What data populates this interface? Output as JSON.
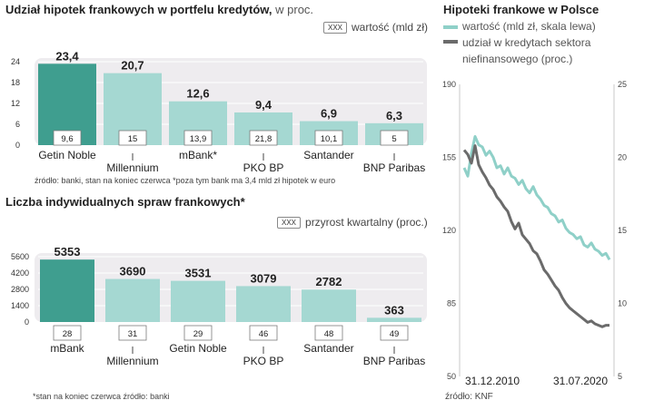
{
  "chart_data": [
    {
      "type": "bar",
      "title": "Udział hipotek frankowych w portfelu kredytów,",
      "unit": "w proc.",
      "legend_marker": "XXX",
      "legend_label": "wartość (mld zł)",
      "categories": [
        "Getin Noble",
        "Millennium",
        "mBank*",
        "PKO BP",
        "Santander",
        "BNP Paribas"
      ],
      "values": [
        23.4,
        20.7,
        12.6,
        9.4,
        6.9,
        6.3
      ],
      "value_labels": [
        "23,4",
        "20,7",
        "12,6",
        "9,4",
        "6,9",
        "6,3"
      ],
      "inner_labels": [
        "9,6",
        "15",
        "13,9",
        "21,8",
        "10,1",
        "5"
      ],
      "yticks": [
        "0",
        "6",
        "12",
        "18",
        "24"
      ],
      "ylim": [
        0,
        24
      ],
      "highlight_index": 0,
      "colors": {
        "highlight": "#3f9e8f",
        "bar": "#a5d8d2",
        "band": "#eeecef"
      },
      "note": "źródło: banki, stan na koniec czerwca *poza tym bank ma 3,4 mld zł hipotek w euro"
    },
    {
      "type": "bar",
      "title": "Liczba indywidualnych spraw frankowych*",
      "legend_marker": "XXX",
      "legend_label": "przyrost kwartalny (proc.)",
      "categories": [
        "mBank",
        "Millennium",
        "Getin Noble",
        "PKO BP",
        "Santander",
        "BNP Paribas"
      ],
      "values": [
        5353,
        3690,
        3531,
        3079,
        2782,
        363
      ],
      "value_labels": [
        "5353",
        "3690",
        "3531",
        "3079",
        "2782",
        "363"
      ],
      "inner_labels": [
        "28",
        "31",
        "29",
        "46",
        "48",
        "49"
      ],
      "yticks": [
        "0",
        "1400",
        "2800",
        "4200",
        "5600"
      ],
      "ylim": [
        0,
        5600
      ],
      "highlight_index": 0,
      "colors": {
        "highlight": "#3f9e8f",
        "bar": "#a5d8d2",
        "band": "#eeecef"
      },
      "note": "*stan na koniec czerwca źródło: banki"
    },
    {
      "type": "line",
      "title": "Hipoteki frankowe w Polsce",
      "series": [
        {
          "name": "wartość (mld zł, skala lewa)",
          "axis": "left",
          "color": "#8fd0c8",
          "values": [
            150,
            146,
            157,
            165,
            161,
            160,
            156,
            158,
            155,
            150,
            151,
            147,
            150,
            146,
            145,
            142,
            144,
            140,
            138,
            141,
            137,
            135,
            132,
            131,
            128,
            127,
            124,
            125,
            121,
            119,
            118,
            116,
            117,
            113,
            112,
            114,
            111,
            110,
            108,
            109,
            106
          ]
        },
        {
          "name": "udział w kredytach sektora niefinansowego (proc.)",
          "axis": "right",
          "color": "#6b6b6b",
          "values": [
            20.5,
            20.2,
            19.6,
            20.8,
            19.5,
            19.0,
            18.6,
            18.1,
            17.8,
            17.3,
            17.0,
            16.6,
            16.3,
            15.6,
            15.1,
            15.5,
            14.7,
            14.4,
            14.1,
            13.6,
            13.4,
            12.9,
            12.3,
            12.0,
            11.6,
            11.2,
            10.9,
            10.4,
            10.0,
            9.7,
            9.5,
            9.3,
            9.1,
            8.9,
            8.7,
            8.8,
            8.6,
            8.5,
            8.4,
            8.5,
            8.5
          ]
        }
      ],
      "left_ticks": [
        "190",
        "155",
        "120",
        "85",
        "50"
      ],
      "right_ticks": [
        "25",
        "20",
        "15",
        "10",
        "5"
      ],
      "left_range": [
        50,
        190
      ],
      "right_range": [
        5,
        25
      ],
      "x_labels": [
        "31.12.2010",
        "31.07.2020"
      ],
      "note": "źródło: KNF"
    }
  ]
}
